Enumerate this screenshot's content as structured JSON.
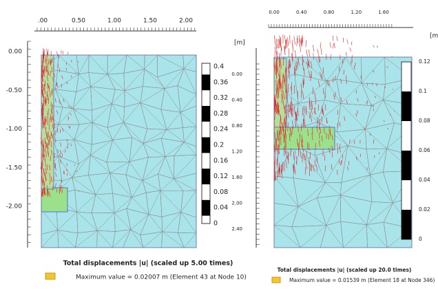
{
  "panels": [
    {
      "unit": "[m]",
      "top_ruler": [
        ".00",
        "0.50",
        "1.00",
        "1.50",
        "2.00"
      ],
      "left_ruler": [
        "0.00",
        "-0.50",
        "-1.00",
        "-1.50",
        "-2.00"
      ],
      "legend": [
        "0.4",
        "0.36",
        "0.32",
        "0.28",
        "0.24",
        "0.2",
        "0.16",
        "0.12",
        "0.08",
        "0.04",
        "0"
      ],
      "caption": "Total displacements |u| (scaled up 5.00 times)",
      "max_value": "Maximum value = 0.02007 m (Element 43 at Node 10)"
    },
    {
      "unit": "[m",
      "top_ruler": [
        "0.00",
        "0.40",
        "0.80",
        "1.20",
        "1.60"
      ],
      "left_ruler": [
        "0.00",
        "0.40",
        "0.80",
        "1.20",
        "1.60",
        "2.00",
        "2.40"
      ],
      "legend": [
        "0.12",
        "0.1",
        "0.08",
        "0.06",
        "0.04",
        "0.02",
        "0"
      ],
      "caption": "Total displacements |u| (scaled up 20.0 times)",
      "max_value": "Maximum value = 0.01539 m (Element 18 at Node 346)"
    }
  ]
}
